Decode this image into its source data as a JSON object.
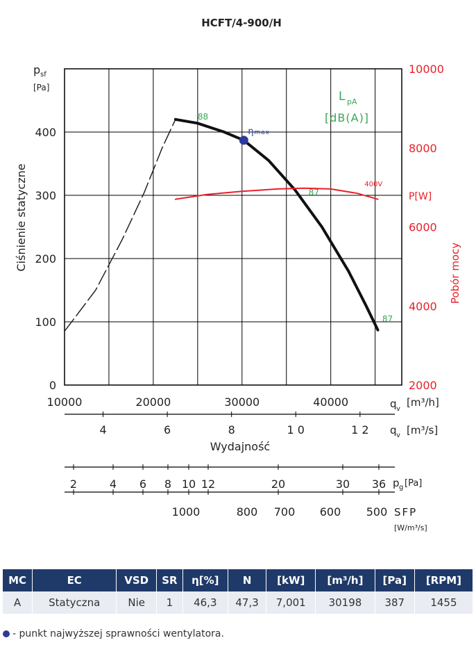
{
  "chart_data": {
    "type": "line",
    "title": "HCFT/4-900/H",
    "ylabel_symbol": "p",
    "ylabel_sub": "sf",
    "ylabel_unit": "[Pa]",
    "ylabel_text": "Ciśnienie statyczne",
    "y2label_title": "P[W]",
    "y2label_text": "Pobór mocy",
    "lpa_label_main": "L",
    "lpa_label_sub": "pA",
    "lpa_label_unit": "[dB(A)]",
    "xlabel_symbol": "q",
    "xlabel_sub": "v",
    "xlabel_unit_h": "[m³/h]",
    "xlabel_unit_s": "[m³/s]",
    "xlabel_text": "Wydajność",
    "xlim": [
      10000,
      48000
    ],
    "ylim": [
      0,
      500
    ],
    "y2lim": [
      2000,
      10000
    ],
    "x_ticks": [
      10000,
      20000,
      30000,
      40000
    ],
    "y_ticks": [
      0,
      100,
      200,
      300,
      400
    ],
    "y2_ticks": [
      2000,
      4000,
      6000,
      8000,
      10000
    ],
    "x2_ticks": [
      4,
      6,
      8,
      10,
      12
    ],
    "x2_tick_labels": [
      "4",
      "6",
      "8",
      "1 0",
      "1 2"
    ],
    "series": [
      {
        "name": "",
        "style": "dashed",
        "color": "#222222",
        "x": [
          10000,
          13500,
          16500,
          19000,
          21000,
          22500
        ],
        "y": [
          85,
          150,
          230,
          305,
          375,
          420
        ]
      },
      {
        "name": "",
        "style": "solid",
        "color": "#111111",
        "x": [
          22500,
          25000,
          28000,
          30200,
          33000,
          36000,
          39000,
          42000,
          44000,
          45300
        ],
        "y": [
          420,
          414,
          400,
          387,
          355,
          308,
          250,
          180,
          125,
          87
        ]
      },
      {
        "name": "400V",
        "style": "solid",
        "color": "#e8202a",
        "axis": "y2",
        "x": [
          22500,
          26000,
          30000,
          34000,
          37000,
          40000,
          43000,
          45300
        ],
        "y": [
          6700,
          6820,
          6900,
          6960,
          6980,
          6960,
          6850,
          6700
        ]
      }
    ],
    "lpa_markers": [
      {
        "label": "88",
        "x": 25000,
        "y": 420
      },
      {
        "label": "87",
        "x": 37500,
        "y": 300
      },
      {
        "label": "87",
        "x": 45800,
        "y": 100
      }
    ],
    "eta_point": {
      "label": "η",
      "label_sub": "max",
      "x": 30200,
      "y": 387
    },
    "curve_label_400v": "400V",
    "pg_ticks_labels": [
      "2",
      "4",
      "6",
      "8",
      "10",
      "12",
      "20",
      "30",
      "36"
    ],
    "pg_label": "p",
    "pg_sub": "g",
    "pg_unit": "[Pa]",
    "sfp_labels": [
      "1000",
      "800",
      "700",
      "600",
      "500"
    ],
    "sfp_label": "SFP",
    "sfp_unit": "[W/m³/s]",
    "colors": {
      "grid": "#000000",
      "curve": "#111111",
      "power": "#e8202a",
      "lpa": "#3aa655",
      "eta": "#2c3a9c"
    }
  },
  "table": {
    "headers": [
      "MC",
      "EC",
      "VSD",
      "SR",
      "η[%]",
      "N",
      "[kW]",
      "[m³/h]",
      "[Pa]",
      "[RPM]"
    ],
    "row": [
      "A",
      "Statyczna",
      "Nie",
      "1",
      "46,3",
      "47,3",
      "7,001",
      "30198",
      "387",
      "1455"
    ]
  },
  "note": "- punkt najwyższej sprawności wentylatora."
}
